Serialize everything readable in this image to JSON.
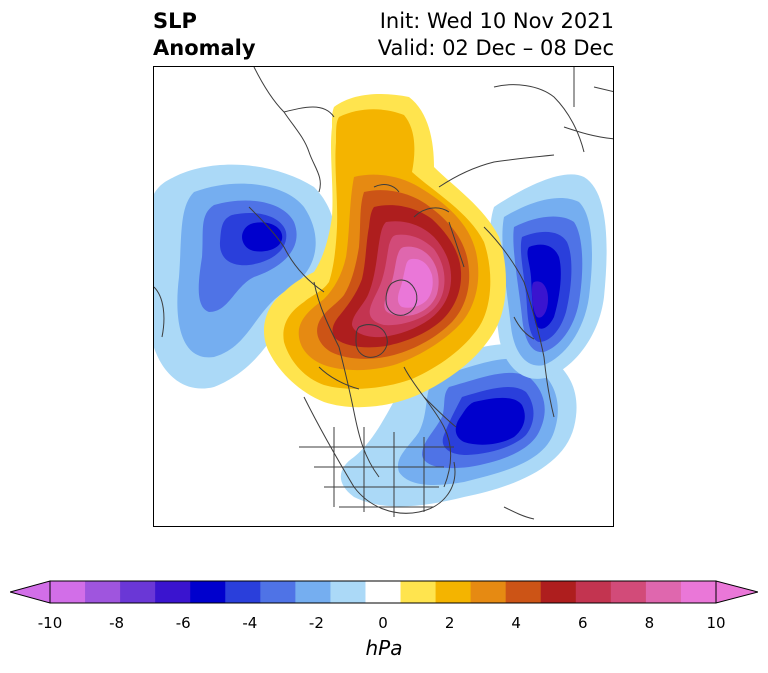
{
  "title": {
    "variable_line1": "SLP",
    "variable_line2": "Anomaly",
    "init": "Init: Wed 10 Nov 2021",
    "valid": "Valid: 02 Dec – 08 Dec"
  },
  "map": {
    "projection": "north-polar-stereographic",
    "features": [
      "coastlines",
      "country-borders",
      "us-state-borders"
    ],
    "anomaly_centers": [
      {
        "name": "arctic-high",
        "sign": "positive",
        "peak_hPa": 10
      },
      {
        "name": "north-pacific-low",
        "sign": "negative",
        "peak_hPa": -7
      },
      {
        "name": "western-atlantic-low",
        "sign": "negative",
        "peak_hPa": -7
      },
      {
        "name": "siberian-low",
        "sign": "negative",
        "peak_hPa": -7
      }
    ]
  },
  "colorbar": {
    "unit": "hPa",
    "extend": "both",
    "tick_labels": [
      "-10",
      "-8",
      "-6",
      "-4",
      "-2",
      "0",
      "2",
      "4",
      "6",
      "8",
      "10"
    ],
    "levels": [
      -10,
      -9,
      -8,
      -7,
      -6,
      -5,
      -4,
      -3,
      -2,
      -1,
      1,
      2,
      3,
      4,
      5,
      6,
      7,
      8,
      9,
      10
    ],
    "colors": [
      "#d26ee8",
      "#9f55de",
      "#6a37d6",
      "#3a14cf",
      "#0000cd",
      "#2a3fdb",
      "#4f73e6",
      "#75aef0",
      "#abd9f7",
      "#ffffff",
      "#ffe44e",
      "#f4b400",
      "#e68a12",
      "#cc5416",
      "#ae1e1e",
      "#c33450",
      "#d24b79",
      "#df67ae",
      "#ea77d8"
    ],
    "under_color": "#d26ee8",
    "over_color": "#ea77d8"
  }
}
